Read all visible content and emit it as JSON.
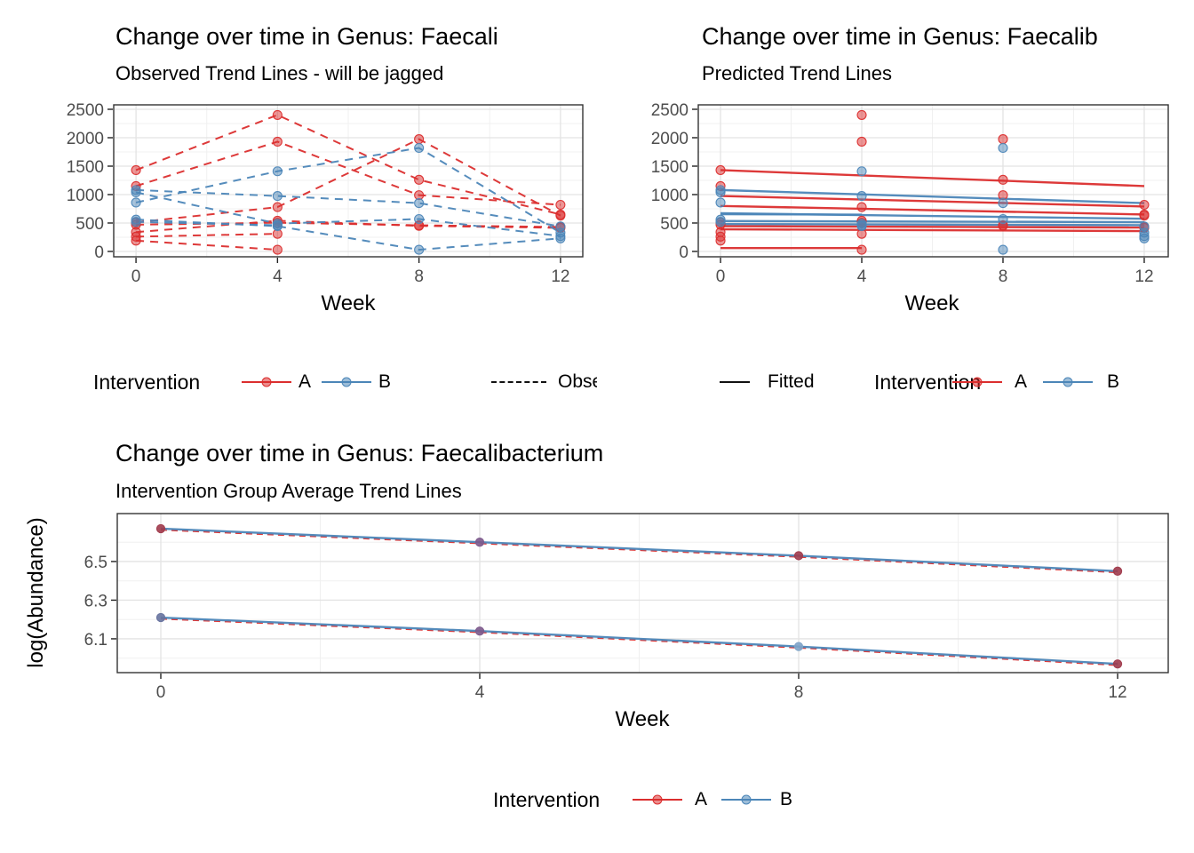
{
  "colors": {
    "A": "#DB2E2E",
    "B": "#4C86B8",
    "maroon": "#A03B4C",
    "plum": "#7D5A8C",
    "slate": "#67739F",
    "steel": "#7FA3C8",
    "grid_major": "#E3E3E3",
    "grid_minor": "#F0F0F0",
    "panel_border": "#333333",
    "tick_label": "#4D4D4D"
  },
  "chart_data": [
    {
      "id": "observed",
      "type": "line",
      "title": "Change over time in Genus: Faecali",
      "subtitle": "Observed Trend Lines - will be jagged",
      "xlabel": "Week",
      "x_ticks": [
        {
          "v": 0,
          "label": "0"
        },
        {
          "v": 4,
          "label": "4"
        },
        {
          "v": 8,
          "label": "8"
        },
        {
          "v": 12,
          "label": "12"
        }
      ],
      "y_ticks": [
        {
          "v": 0,
          "label": "0"
        },
        {
          "v": 500,
          "label": "500"
        },
        {
          "v": 1000,
          "label": "1000"
        },
        {
          "v": 1500,
          "label": "1500"
        },
        {
          "v": 2000,
          "label": "2000"
        },
        {
          "v": 2500,
          "label": "2500"
        }
      ],
      "x_minor": [
        2,
        6,
        10
      ],
      "y_minor": [
        250,
        750,
        1250,
        1750,
        2250
      ],
      "xlim": [
        -0.63,
        12.63
      ],
      "ylim": [
        -94,
        2578
      ],
      "points_on_vertex": true,
      "lines": [
        {
          "group": "A",
          "style": "dashed",
          "path": [
            [
              0,
              1430
            ],
            [
              4,
              2400
            ],
            [
              8,
              1260
            ],
            [
              12,
              650
            ]
          ]
        },
        {
          "group": "A",
          "style": "dashed",
          "path": [
            [
              0,
              1150
            ],
            [
              4,
              1930
            ],
            [
              8,
              990
            ],
            [
              12,
              820
            ]
          ]
        },
        {
          "group": "A",
          "style": "dashed",
          "path": [
            [
              0,
              510
            ],
            [
              4,
              780
            ],
            [
              8,
              1975
            ],
            [
              12,
              630
            ]
          ]
        },
        {
          "group": "A",
          "style": "dashed",
          "path": [
            [
              0,
              470
            ],
            [
              4,
              505
            ],
            [
              8,
              460
            ],
            [
              12,
              430
            ]
          ]
        },
        {
          "group": "A",
          "style": "dashed",
          "path": [
            [
              0,
              340
            ],
            [
              4,
              540
            ],
            [
              8,
              450
            ],
            [
              12,
              415
            ]
          ]
        },
        {
          "group": "A",
          "style": "dashed",
          "path": [
            [
              0,
              260
            ],
            [
              4,
              310
            ]
          ]
        },
        {
          "group": "A",
          "style": "dashed",
          "path": [
            [
              0,
              190
            ],
            [
              4,
              30
            ]
          ]
        },
        {
          "group": "B",
          "style": "dashed",
          "path": [
            [
              0,
              860
            ],
            [
              4,
              1410
            ],
            [
              8,
              1820
            ],
            [
              12,
              330
            ]
          ]
        },
        {
          "group": "B",
          "style": "dashed",
          "path": [
            [
              0,
              1080
            ],
            [
              4,
              975
            ],
            [
              8,
              850
            ],
            [
              12,
              440
            ]
          ]
        },
        {
          "group": "B",
          "style": "dashed",
          "path": [
            [
              0,
              1040
            ],
            [
              4,
              490
            ],
            [
              8,
              570
            ],
            [
              12,
              270
            ]
          ]
        },
        {
          "group": "B",
          "style": "dashed",
          "path": [
            [
              0,
              560
            ],
            [
              4,
              445
            ],
            [
              8,
              30
            ],
            [
              12,
              230
            ]
          ]
        },
        {
          "group": "B",
          "style": "dashed",
          "path": [
            [
              0,
              520
            ],
            [
              4,
              460
            ]
          ]
        }
      ],
      "points": [],
      "legend": {
        "title": "Intervention",
        "a": "A",
        "b": "B",
        "linetype_label": "Observed"
      }
    },
    {
      "id": "predicted",
      "type": "line",
      "title": "Change over time in Genus: Faecalib",
      "subtitle": "Predicted Trend Lines",
      "xlabel": "Week",
      "x_ticks": [
        {
          "v": 0,
          "label": "0"
        },
        {
          "v": 4,
          "label": "4"
        },
        {
          "v": 8,
          "label": "8"
        },
        {
          "v": 12,
          "label": "12"
        }
      ],
      "y_ticks": [
        {
          "v": 0,
          "label": "0"
        },
        {
          "v": 500,
          "label": "500"
        },
        {
          "v": 1000,
          "label": "1000"
        },
        {
          "v": 1500,
          "label": "1500"
        },
        {
          "v": 2000,
          "label": "2000"
        },
        {
          "v": 2500,
          "label": "2500"
        }
      ],
      "x_minor": [
        2,
        6,
        10
      ],
      "y_minor": [
        250,
        750,
        1250,
        1750,
        2250
      ],
      "xlim": [
        -0.63,
        12.68
      ],
      "ylim": [
        -94,
        2578
      ],
      "points_on_vertex": false,
      "lines": [
        {
          "group": "A",
          "style": "solid",
          "path": [
            [
              0,
              1430
            ],
            [
              12,
              1150
            ]
          ]
        },
        {
          "group": "A",
          "style": "solid",
          "path": [
            [
              0,
              975
            ],
            [
              12,
              790
            ]
          ]
        },
        {
          "group": "A",
          "style": "solid",
          "path": [
            [
              0,
              800
            ],
            [
              12,
              650
            ]
          ]
        },
        {
          "group": "A",
          "style": "solid",
          "path": [
            [
              0,
              445
            ],
            [
              12,
              420
            ]
          ]
        },
        {
          "group": "A",
          "style": "solid",
          "path": [
            [
              0,
              390
            ],
            [
              12,
              358
            ]
          ]
        },
        {
          "group": "A",
          "style": "solid",
          "path": [
            [
              0,
              60
            ],
            [
              4,
              60
            ]
          ]
        },
        {
          "group": "B",
          "style": "solid",
          "path": [
            [
              0,
              1080
            ],
            [
              12,
              850
            ]
          ]
        },
        {
          "group": "B",
          "style": "solid",
          "path": [
            [
              0,
              672
            ],
            [
              12,
              575
            ]
          ]
        },
        {
          "group": "B",
          "style": "solid",
          "path": [
            [
              0,
              655
            ],
            [
              4,
              648
            ]
          ]
        },
        {
          "group": "B",
          "style": "solid",
          "path": [
            [
              0,
              535
            ],
            [
              12,
              515
            ]
          ]
        },
        {
          "group": "B",
          "style": "solid",
          "path": [
            [
              0,
              482
            ],
            [
              12,
              462
            ]
          ]
        }
      ],
      "points": [
        {
          "g": "A",
          "x": 0,
          "y": 1430
        },
        {
          "g": "A",
          "x": 0,
          "y": 1150
        },
        {
          "g": "A",
          "x": 0,
          "y": 510
        },
        {
          "g": "A",
          "x": 0,
          "y": 470
        },
        {
          "g": "A",
          "x": 0,
          "y": 340
        },
        {
          "g": "A",
          "x": 0,
          "y": 260
        },
        {
          "g": "A",
          "x": 0,
          "y": 190
        },
        {
          "g": "A",
          "x": 4,
          "y": 2400
        },
        {
          "g": "A",
          "x": 4,
          "y": 1930
        },
        {
          "g": "A",
          "x": 4,
          "y": 780
        },
        {
          "g": "A",
          "x": 4,
          "y": 505
        },
        {
          "g": "A",
          "x": 4,
          "y": 540
        },
        {
          "g": "A",
          "x": 4,
          "y": 310
        },
        {
          "g": "A",
          "x": 4,
          "y": 30
        },
        {
          "g": "A",
          "x": 8,
          "y": 1260
        },
        {
          "g": "A",
          "x": 8,
          "y": 990
        },
        {
          "g": "A",
          "x": 8,
          "y": 1975
        },
        {
          "g": "A",
          "x": 8,
          "y": 460
        },
        {
          "g": "A",
          "x": 8,
          "y": 450
        },
        {
          "g": "A",
          "x": 12,
          "y": 650
        },
        {
          "g": "A",
          "x": 12,
          "y": 820
        },
        {
          "g": "A",
          "x": 12,
          "y": 630
        },
        {
          "g": "A",
          "x": 12,
          "y": 430
        },
        {
          "g": "A",
          "x": 12,
          "y": 415
        },
        {
          "g": "B",
          "x": 0,
          "y": 860
        },
        {
          "g": "B",
          "x": 0,
          "y": 1080
        },
        {
          "g": "B",
          "x": 0,
          "y": 1040
        },
        {
          "g": "B",
          "x": 0,
          "y": 560
        },
        {
          "g": "B",
          "x": 0,
          "y": 520
        },
        {
          "g": "B",
          "x": 4,
          "y": 1410
        },
        {
          "g": "B",
          "x": 4,
          "y": 975
        },
        {
          "g": "B",
          "x": 4,
          "y": 490
        },
        {
          "g": "B",
          "x": 4,
          "y": 445
        },
        {
          "g": "B",
          "x": 4,
          "y": 460
        },
        {
          "g": "B",
          "x": 8,
          "y": 1820
        },
        {
          "g": "B",
          "x": 8,
          "y": 850
        },
        {
          "g": "B",
          "x": 8,
          "y": 570
        },
        {
          "g": "B",
          "x": 8,
          "y": 30
        },
        {
          "g": "B",
          "x": 12,
          "y": 330
        },
        {
          "g": "B",
          "x": 12,
          "y": 440
        },
        {
          "g": "B",
          "x": 12,
          "y": 270
        },
        {
          "g": "B",
          "x": 12,
          "y": 230
        }
      ],
      "legend": {
        "fitted_label": "Fitted",
        "title": "Intervention",
        "a": "A",
        "b": "B"
      }
    },
    {
      "id": "average",
      "type": "line",
      "title": "Change over time in Genus: Faecalibacterium",
      "subtitle": "Intervention Group Average Trend Lines",
      "xlabel": "Week",
      "ylabel": "log(Abundance)",
      "x_ticks": [
        {
          "v": 0,
          "label": "0"
        },
        {
          "v": 4,
          "label": "4"
        },
        {
          "v": 8,
          "label": "8"
        },
        {
          "v": 12,
          "label": "12"
        }
      ],
      "y_ticks": [
        {
          "v": 6.1,
          "label": "6.1"
        },
        {
          "v": 6.3,
          "label": "6.3"
        },
        {
          "v": 6.5,
          "label": "6.5"
        }
      ],
      "x_minor": [
        2,
        6,
        10
      ],
      "y_minor": [
        6.0,
        6.2,
        6.4,
        6.6
      ],
      "xlim": [
        -0.546,
        12.635
      ],
      "ylim": [
        5.925,
        6.748
      ],
      "points_on_vertex": false,
      "overlay_dashed_offset": 1.3,
      "lines": [
        {
          "group": "A",
          "style": "dashed",
          "path": [
            [
              0,
              6.67
            ],
            [
              4,
              6.6
            ],
            [
              8,
              6.53
            ],
            [
              12,
              6.45
            ]
          ]
        },
        {
          "group": "B",
          "style": "solid",
          "path": [
            [
              0,
              6.67
            ],
            [
              4,
              6.6
            ],
            [
              8,
              6.53
            ],
            [
              12,
              6.45
            ]
          ]
        },
        {
          "group": "A",
          "style": "dashed",
          "path": [
            [
              0,
              6.21
            ],
            [
              4,
              6.14
            ],
            [
              8,
              6.06
            ],
            [
              12,
              5.97
            ]
          ]
        },
        {
          "group": "B",
          "style": "solid",
          "path": [
            [
              0,
              6.21
            ],
            [
              4,
              6.14
            ],
            [
              8,
              6.06
            ],
            [
              12,
              5.97
            ]
          ]
        }
      ],
      "points": [
        {
          "c": "maroon",
          "x": 0,
          "y": 6.67
        },
        {
          "c": "plum",
          "x": 4,
          "y": 6.6
        },
        {
          "c": "maroon",
          "x": 8,
          "y": 6.53
        },
        {
          "c": "maroon",
          "x": 12,
          "y": 6.45
        },
        {
          "c": "slate",
          "x": 0,
          "y": 6.21
        },
        {
          "c": "plum",
          "x": 4,
          "y": 6.14
        },
        {
          "c": "steel",
          "x": 8,
          "y": 6.06
        },
        {
          "c": "maroon",
          "x": 12,
          "y": 5.97
        }
      ],
      "legend": {
        "title": "Intervention",
        "a": "A",
        "b": "B"
      }
    }
  ]
}
